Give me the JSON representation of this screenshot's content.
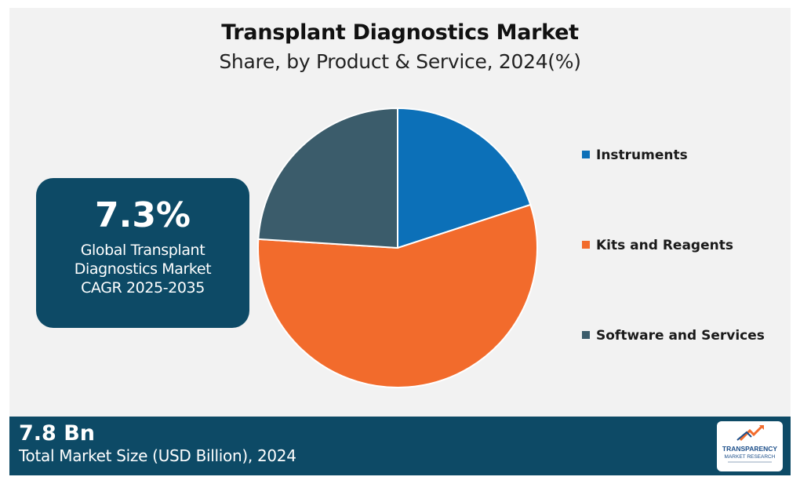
{
  "chart_data": {
    "type": "pie",
    "title": "Transplant Diagnostics Market",
    "subtitle": "Share, by Product & Service, 2024(%)",
    "categories": [
      "Instruments",
      "Kits and Reagents",
      "Software and Services"
    ],
    "values": [
      20,
      56,
      24
    ],
    "colors": [
      "#0c70b8",
      "#f26b2c",
      "#3b5c6b"
    ],
    "start_angle_deg": 0,
    "direction": "clockwise",
    "legend_position": "right"
  },
  "highlight": {
    "cagr_value": "7.3%",
    "cagr_label": "Global Transplant Diagnostics Market CAGR 2025-2035"
  },
  "footer": {
    "market_size_value": "7.8 Bn",
    "market_size_label": "Total Market Size (USD Billion), 2024"
  },
  "logo": {
    "line1": "TRANSPARENCY",
    "line2": "MARKET RESEARCH",
    "icon": "growth-arrow-icon",
    "colors": [
      "#1d4f8a",
      "#f26b2c"
    ]
  }
}
